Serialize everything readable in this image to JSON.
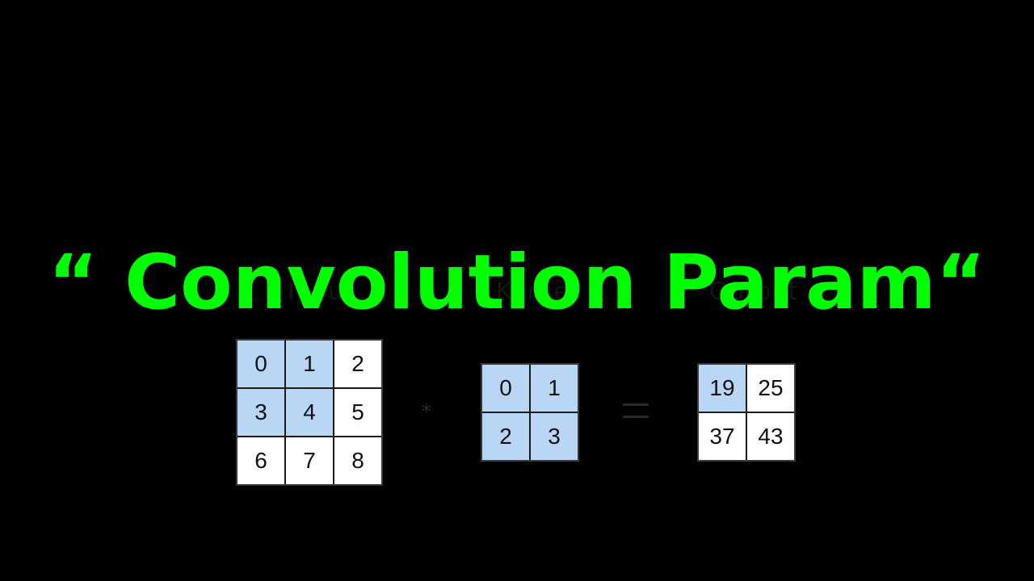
{
  "title": "“ Convolution Param“",
  "labels": {
    "input": "Input",
    "kernel": "Kernel",
    "output": "Output"
  },
  "operators": {
    "convolve": "*"
  },
  "colors": {
    "background": "#000000",
    "title": "#00ff00",
    "shaded_cell": "#b9d7f5",
    "plain_cell": "#ffffff"
  },
  "input": {
    "rows": [
      [
        "0",
        "1",
        "2"
      ],
      [
        "3",
        "4",
        "5"
      ],
      [
        "6",
        "7",
        "8"
      ]
    ]
  },
  "kernel": {
    "rows": [
      [
        "0",
        "1"
      ],
      [
        "2",
        "3"
      ]
    ]
  },
  "output": {
    "rows": [
      [
        "19",
        "25"
      ],
      [
        "37",
        "43"
      ]
    ]
  }
}
